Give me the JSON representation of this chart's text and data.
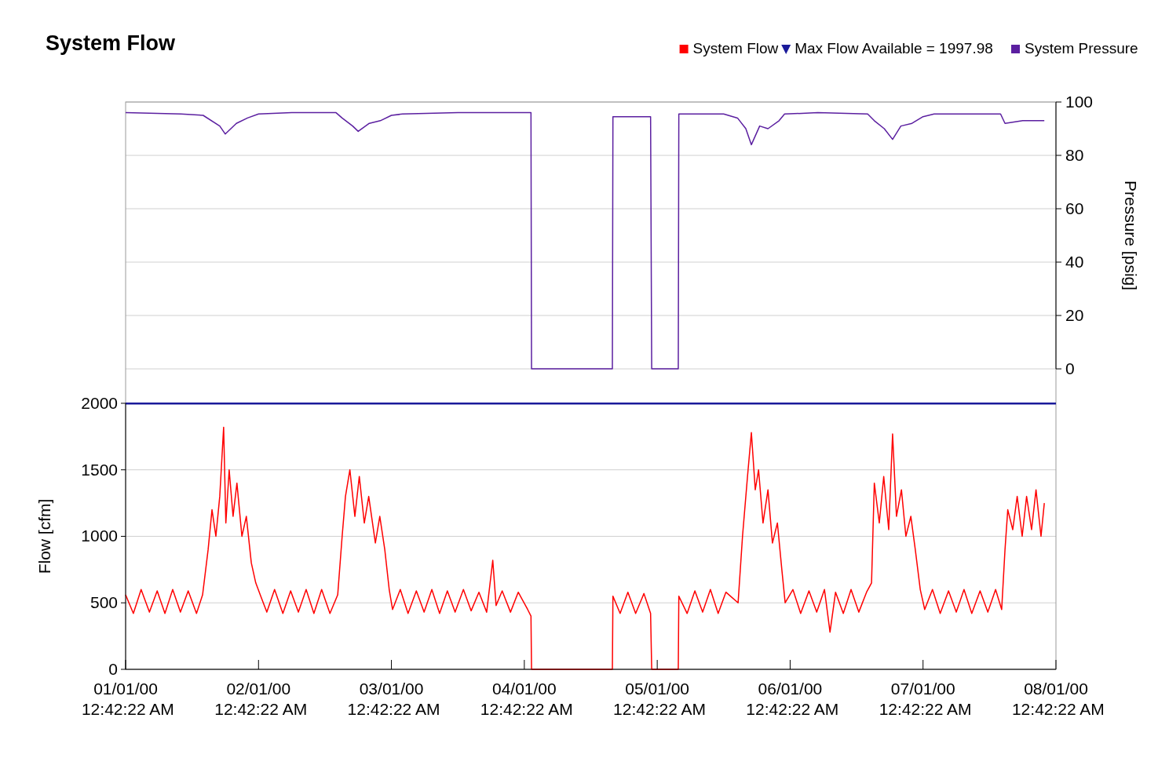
{
  "chart_data": {
    "type": "line",
    "title": "System Flow",
    "ylabel": "Flow [cfm]",
    "y2label": "Pressure [psig]",
    "xlim": [
      "2000-01-01T00:42",
      "2000-01-08T00:42"
    ],
    "xticks": [
      {
        "value": "2000-01-01T00:42",
        "label": "01/01/00 12:42:22 AM"
      },
      {
        "value": "2000-01-02T00:42",
        "label": "02/01/00 12:42:22 AM"
      },
      {
        "value": "2000-01-03T00:42",
        "label": "03/01/00 12:42:22 AM"
      },
      {
        "value": "2000-01-04T00:42",
        "label": "04/01/00 12:42:22 AM"
      },
      {
        "value": "2000-01-05T00:42",
        "label": "05/01/00 12:42:22 AM"
      },
      {
        "value": "2000-01-06T00:42",
        "label": "06/01/00 12:42:22 AM"
      },
      {
        "value": "2000-01-07T00:42",
        "label": "07/01/00 12:42:22 AM"
      },
      {
        "value": "2000-01-08T00:42",
        "label": "08/01/00 12:42:22 AM"
      }
    ],
    "ylim": [
      0,
      4265
    ],
    "yticks": [
      0,
      500,
      1000,
      1500,
      2000
    ],
    "y2lim": [
      -112.6,
      100
    ],
    "y2ticks": [
      0,
      20,
      40,
      60,
      80,
      100
    ],
    "grid": "y",
    "legend": "top right",
    "ref_lines": [
      {
        "axis": "y",
        "value": 1997.98,
        "label": "Max Flow Available = 1997.98",
        "color": "#1a1a9a"
      }
    ],
    "series": [
      {
        "name": "System Flow",
        "color": "#ff0000",
        "x": [
          "2000-01-01T00:42",
          "2000-01-01T02:06",
          "2000-01-01T03:30",
          "2000-01-01T05:00",
          "2000-01-01T06:24",
          "2000-01-01T07:48",
          "2000-01-01T09:12",
          "2000-01-01T10:36",
          "2000-01-01T12:00",
          "2000-01-01T13:30",
          "2000-01-01T14:36",
          "2000-01-01T15:36",
          "2000-01-01T16:18",
          "2000-01-01T17:00",
          "2000-01-01T17:42",
          "2000-01-01T18:24",
          "2000-01-01T18:48",
          "2000-01-01T19:24",
          "2000-01-01T20:06",
          "2000-01-01T20:48",
          "2000-01-01T21:42",
          "2000-01-01T22:30",
          "2000-01-01T23:24",
          "2000-01-02T00:12",
          "2000-01-02T01:06",
          "2000-01-02T02:12",
          "2000-01-02T03:36",
          "2000-01-02T05:06",
          "2000-01-02T06:30",
          "2000-01-02T07:54",
          "2000-01-02T09:18",
          "2000-01-02T10:42",
          "2000-01-02T12:06",
          "2000-01-02T13:36",
          "2000-01-02T15:00",
          "2000-01-02T15:48",
          "2000-01-02T16:24",
          "2000-01-02T17:12",
          "2000-01-02T18:06",
          "2000-01-02T18:54",
          "2000-01-02T19:48",
          "2000-01-02T20:36",
          "2000-01-02T21:48",
          "2000-01-02T22:36",
          "2000-01-02T23:30",
          "2000-01-03T00:18",
          "2000-01-03T00:54",
          "2000-01-03T02:18",
          "2000-01-03T03:42",
          "2000-01-03T05:12",
          "2000-01-03T06:36",
          "2000-01-03T08:00",
          "2000-01-03T09:24",
          "2000-01-03T10:48",
          "2000-01-03T12:12",
          "2000-01-03T13:42",
          "2000-01-03T15:06",
          "2000-01-03T16:30",
          "2000-01-03T17:54",
          "2000-01-03T19:00",
          "2000-01-03T19:36",
          "2000-01-03T20:42",
          "2000-01-03T22:12",
          "2000-01-03T23:36",
          "2000-01-04T01:18",
          "2000-01-04T01:54",
          "2000-01-04T02:00",
          "2000-01-04T16:36",
          "2000-01-04T16:42",
          "2000-01-04T18:00",
          "2000-01-04T19:24",
          "2000-01-04T20:48",
          "2000-01-04T22:18",
          "2000-01-04T23:30",
          "2000-01-04T23:42",
          "2000-01-05T04:30",
          "2000-01-05T04:36",
          "2000-01-05T06:06",
          "2000-01-05T07:30",
          "2000-01-05T08:54",
          "2000-01-05T10:18",
          "2000-01-05T11:42",
          "2000-01-05T13:06",
          "2000-01-05T15:18",
          "2000-01-05T16:06",
          "2000-01-05T17:00",
          "2000-01-05T17:42",
          "2000-01-05T18:24",
          "2000-01-05T19:00",
          "2000-01-05T19:48",
          "2000-01-05T20:42",
          "2000-01-05T21:30",
          "2000-01-05T22:24",
          "2000-01-05T23:12",
          "2000-01-05T23:48",
          "2000-01-06T01:12",
          "2000-01-06T02:36",
          "2000-01-06T04:06",
          "2000-01-06T05:30",
          "2000-01-06T06:54",
          "2000-01-06T07:54",
          "2000-01-06T08:54",
          "2000-01-06T10:18",
          "2000-01-06T11:42",
          "2000-01-06T13:06",
          "2000-01-06T14:30",
          "2000-01-06T15:24",
          "2000-01-06T15:54",
          "2000-01-06T16:48",
          "2000-01-06T17:36",
          "2000-01-06T18:30",
          "2000-01-06T19:12",
          "2000-01-06T19:54",
          "2000-01-06T20:48",
          "2000-01-06T21:36",
          "2000-01-06T22:30",
          "2000-01-06T23:18",
          "2000-01-07T00:12",
          "2000-01-07T01:00",
          "2000-01-07T02:24",
          "2000-01-07T03:48",
          "2000-01-07T05:18",
          "2000-01-07T06:42",
          "2000-01-07T08:06",
          "2000-01-07T09:30",
          "2000-01-07T11:00",
          "2000-01-07T12:24",
          "2000-01-07T13:48",
          "2000-01-07T14:54",
          "2000-01-07T15:30",
          "2000-01-07T16:00",
          "2000-01-07T16:54",
          "2000-01-07T17:42",
          "2000-01-07T18:36",
          "2000-01-07T19:24",
          "2000-01-07T20:18",
          "2000-01-07T21:06",
          "2000-01-07T22:00",
          "2000-01-07T22:36"
        ],
        "values": [
          560,
          420,
          600,
          430,
          590,
          420,
          600,
          430,
          590,
          420,
          560,
          900,
          1200,
          1000,
          1300,
          1820,
          1100,
          1500,
          1150,
          1400,
          1000,
          1150,
          800,
          650,
          550,
          430,
          600,
          420,
          590,
          430,
          600,
          420,
          600,
          420,
          560,
          1000,
          1300,
          1500,
          1150,
          1450,
          1100,
          1300,
          950,
          1150,
          900,
          600,
          450,
          600,
          420,
          590,
          430,
          600,
          420,
          590,
          430,
          600,
          440,
          580,
          430,
          820,
          480,
          590,
          430,
          580,
          450,
          400,
          0,
          0,
          550,
          420,
          580,
          420,
          570,
          420,
          0,
          0,
          550,
          420,
          590,
          430,
          600,
          420,
          580,
          500,
          1000,
          1450,
          1780,
          1350,
          1500,
          1100,
          1350,
          950,
          1100,
          750,
          500,
          600,
          420,
          590,
          430,
          600,
          280,
          580,
          420,
          600,
          430,
          580,
          650,
          1400,
          1100,
          1450,
          1050,
          1770,
          1150,
          1350,
          1000,
          1150,
          900,
          600,
          450,
          600,
          420,
          590,
          430,
          600,
          420,
          590,
          430,
          600,
          450,
          900,
          1200,
          1050,
          1300,
          1000,
          1300,
          1050,
          1350,
          1000,
          1250
        ]
      },
      {
        "name": "System Pressure",
        "color": "#5b1fa0",
        "axis": "y2",
        "x": [
          "2000-01-01T00:42",
          "2000-01-01T10:42",
          "2000-01-01T14:42",
          "2000-01-01T17:42",
          "2000-01-01T18:42",
          "2000-01-01T20:42",
          "2000-01-01T22:42",
          "2000-01-02T00:42",
          "2000-01-02T06:42",
          "2000-01-02T14:42",
          "2000-01-02T15:48",
          "2000-01-02T17:42",
          "2000-01-02T18:42",
          "2000-01-02T20:42",
          "2000-01-02T22:42",
          "2000-01-03T00:42",
          "2000-01-03T02:42",
          "2000-01-03T12:42",
          "2000-01-04T01:18",
          "2000-01-04T01:54",
          "2000-01-04T02:00",
          "2000-01-04T16:36",
          "2000-01-04T16:42",
          "2000-01-04T23:30",
          "2000-01-04T23:42",
          "2000-01-05T04:30",
          "2000-01-05T04:36",
          "2000-01-05T12:42",
          "2000-01-05T15:12",
          "2000-01-05T16:42",
          "2000-01-05T17:42",
          "2000-01-05T19:12",
          "2000-01-05T20:42",
          "2000-01-05T22:42",
          "2000-01-05T23:42",
          "2000-01-06T05:42",
          "2000-01-06T14:42",
          "2000-01-06T15:54",
          "2000-01-06T17:42",
          "2000-01-06T19:12",
          "2000-01-06T20:42",
          "2000-01-06T22:42",
          "2000-01-07T00:42",
          "2000-01-07T02:42",
          "2000-01-07T14:42",
          "2000-01-07T15:30",
          "2000-01-07T18:42",
          "2000-01-07T22:36"
        ],
        "values": [
          96,
          95.5,
          95,
          91,
          88,
          92,
          94,
          95.5,
          96,
          96,
          94,
          91,
          89,
          92,
          93,
          95,
          95.5,
          96,
          96,
          96,
          0,
          0,
          94.5,
          94.5,
          0,
          0,
          95.5,
          95.5,
          94,
          90,
          84,
          91,
          90,
          93,
          95.5,
          96,
          95.5,
          93,
          90,
          86,
          91,
          92,
          94.5,
          95.5,
          95.5,
          92,
          93,
          93
        ]
      }
    ]
  }
}
